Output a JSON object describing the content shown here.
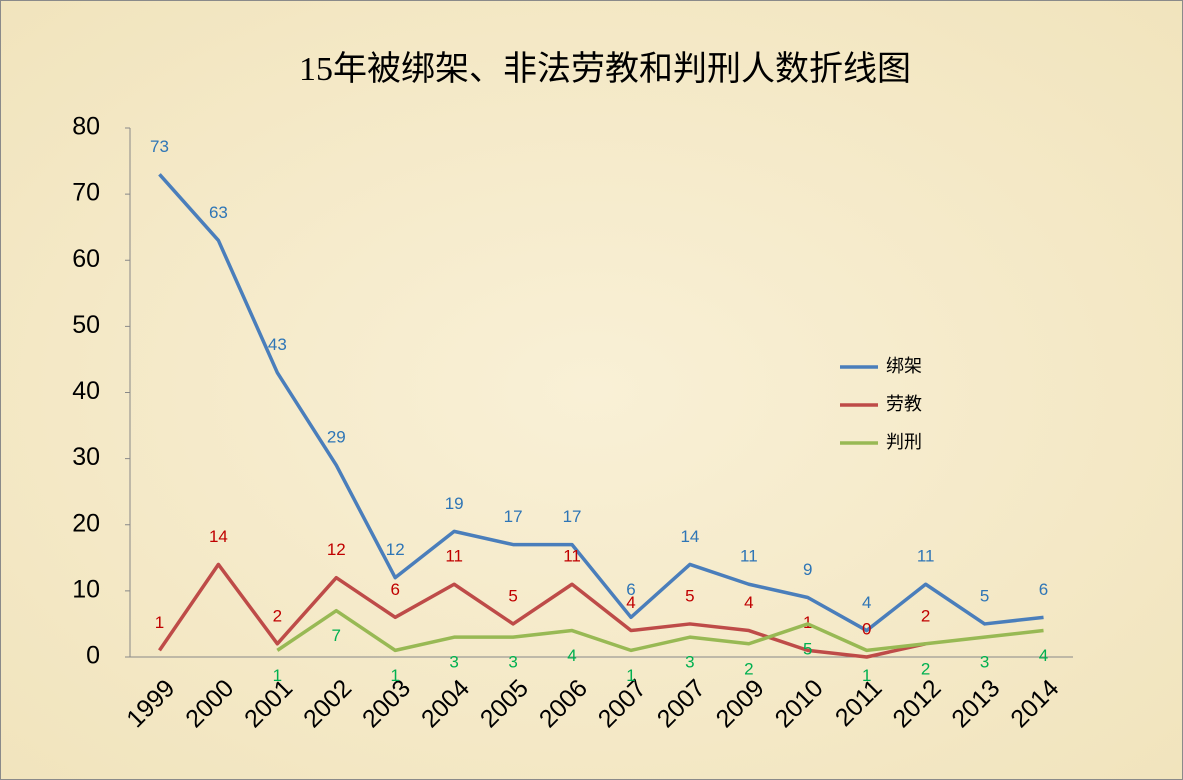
{
  "chart_data": {
    "type": "line",
    "title": "15年被绑架、非法劳教和判刑人数折线图",
    "categories": [
      "1999",
      "2000",
      "2001",
      "2002",
      "2003",
      "2004",
      "2005",
      "2006",
      "2007",
      "2007",
      "2009",
      "2010",
      "2011",
      "2012",
      "2013",
      "2014"
    ],
    "series": [
      {
        "name": "绑架",
        "color": "#4a7ebb",
        "label_color": "#2e75b6",
        "label_side": "above",
        "values": [
          73,
          63,
          43,
          29,
          12,
          19,
          17,
          17,
          6,
          14,
          11,
          9,
          4,
          11,
          5,
          6
        ]
      },
      {
        "name": "劳教",
        "color": "#be4b48",
        "label_color": "#c00000",
        "label_side": "above",
        "values": [
          1,
          14,
          2,
          12,
          6,
          11,
          5,
          11,
          4,
          5,
          4,
          1,
          0,
          2,
          null,
          null
        ]
      },
      {
        "name": "判刑",
        "color": "#98b954",
        "label_color": "#00b050",
        "label_side": "below",
        "values": [
          null,
          null,
          1,
          7,
          1,
          3,
          3,
          4,
          1,
          3,
          2,
          5,
          1,
          2,
          3,
          4
        ]
      }
    ],
    "ylim": [
      0,
      80
    ],
    "yticks": [
      0,
      10,
      20,
      30,
      40,
      50,
      60,
      70,
      80
    ],
    "grid": false,
    "legend": "right"
  }
}
